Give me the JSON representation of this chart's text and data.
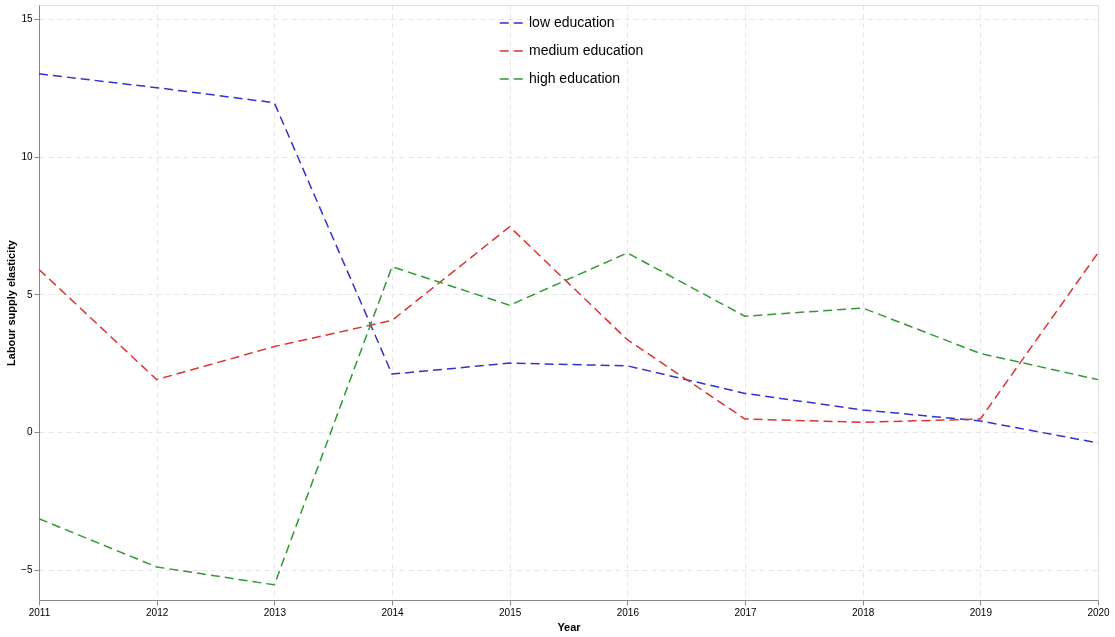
{
  "chart_data": {
    "type": "line",
    "xlabel": "Year",
    "ylabel": "Labour supply elasticity",
    "x": [
      2011,
      2012,
      2013,
      2014,
      2015,
      2016,
      2017,
      2018,
      2019,
      2020
    ],
    "series": [
      {
        "name": "low education",
        "color": "#3333cc",
        "values": [
          13.0,
          12.5,
          11.95,
          2.1,
          2.5,
          2.4,
          1.4,
          0.8,
          0.4,
          -0.4
        ]
      },
      {
        "name": "medium education",
        "color": "#dd3333",
        "values": [
          5.9,
          1.9,
          3.1,
          4.05,
          7.45,
          3.35,
          0.47,
          0.35,
          0.47,
          6.5
        ]
      },
      {
        "name": "high education",
        "color": "#339933",
        "values": [
          -3.15,
          -4.9,
          -5.55,
          6.0,
          4.6,
          6.5,
          4.2,
          4.5,
          2.85,
          1.9
        ]
      }
    ],
    "xlim": [
      2011,
      2020
    ],
    "xticks": [
      2011,
      2012,
      2013,
      2014,
      2015,
      2016,
      2017,
      2018,
      2019,
      2020
    ],
    "ylim": [
      -6.1,
      15.5
    ],
    "yticks": [
      -5,
      0,
      5,
      10,
      15
    ],
    "grid": true,
    "legend": "top",
    "line_style": "dashed",
    "marker": "none"
  }
}
